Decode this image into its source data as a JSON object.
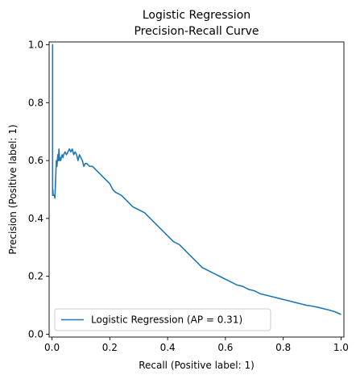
{
  "chart_data": {
    "type": "line",
    "title": "Logistic Regression",
    "subtitle": "Precision-Recall Curve",
    "xlabel": "Recall (Positive label: 1)",
    "ylabel": "Precision (Positive label: 1)",
    "xlim": [
      -0.01,
      1.01
    ],
    "ylim": [
      -0.01,
      1.01
    ],
    "xticks": [
      0.0,
      0.2,
      0.4,
      0.6,
      0.8,
      1.0
    ],
    "xtick_labels": [
      "0.0",
      "0.2",
      "0.4",
      "0.6",
      "0.8",
      "1.0"
    ],
    "yticks": [
      0.0,
      0.2,
      0.4,
      0.6,
      0.8,
      1.0
    ],
    "ytick_labels": [
      "0.0",
      "0.2",
      "0.4",
      "0.6",
      "0.8",
      "1.0"
    ],
    "grid": false,
    "legend_position": "lower-left",
    "series": [
      {
        "name": "Logistic Regression (AP = 0.31)",
        "color": "#1f77b4",
        "x": [
          0.0,
          0.002,
          0.002,
          0.003,
          0.004,
          0.005,
          0.008,
          0.01,
          0.012,
          0.013,
          0.015,
          0.017,
          0.02,
          0.022,
          0.024,
          0.026,
          0.028,
          0.03,
          0.032,
          0.035,
          0.038,
          0.04,
          0.045,
          0.05,
          0.055,
          0.06,
          0.065,
          0.07,
          0.075,
          0.08,
          0.085,
          0.09,
          0.095,
          0.1,
          0.105,
          0.11,
          0.115,
          0.12,
          0.13,
          0.14,
          0.15,
          0.16,
          0.17,
          0.18,
          0.19,
          0.2,
          0.21,
          0.22,
          0.24,
          0.26,
          0.28,
          0.3,
          0.32,
          0.34,
          0.36,
          0.38,
          0.4,
          0.42,
          0.44,
          0.46,
          0.48,
          0.5,
          0.52,
          0.54,
          0.56,
          0.58,
          0.6,
          0.62,
          0.64,
          0.66,
          0.68,
          0.7,
          0.72,
          0.74,
          0.76,
          0.78,
          0.8,
          0.82,
          0.84,
          0.86,
          0.88,
          0.9,
          0.92,
          0.94,
          0.96,
          0.98,
          1.0
        ],
        "y": [
          1.0,
          1.0,
          0.48,
          0.5,
          0.48,
          0.48,
          0.48,
          0.47,
          0.52,
          0.55,
          0.6,
          0.58,
          0.62,
          0.6,
          0.64,
          0.6,
          0.61,
          0.6,
          0.61,
          0.62,
          0.61,
          0.62,
          0.63,
          0.62,
          0.63,
          0.64,
          0.63,
          0.64,
          0.62,
          0.63,
          0.62,
          0.6,
          0.62,
          0.61,
          0.6,
          0.58,
          0.59,
          0.59,
          0.58,
          0.58,
          0.57,
          0.56,
          0.55,
          0.54,
          0.53,
          0.52,
          0.5,
          0.49,
          0.48,
          0.46,
          0.44,
          0.43,
          0.42,
          0.4,
          0.38,
          0.36,
          0.34,
          0.32,
          0.31,
          0.29,
          0.27,
          0.25,
          0.23,
          0.22,
          0.21,
          0.2,
          0.19,
          0.18,
          0.17,
          0.165,
          0.155,
          0.15,
          0.14,
          0.135,
          0.13,
          0.125,
          0.12,
          0.115,
          0.11,
          0.105,
          0.1,
          0.097,
          0.093,
          0.088,
          0.083,
          0.077,
          0.068
        ]
      }
    ]
  }
}
